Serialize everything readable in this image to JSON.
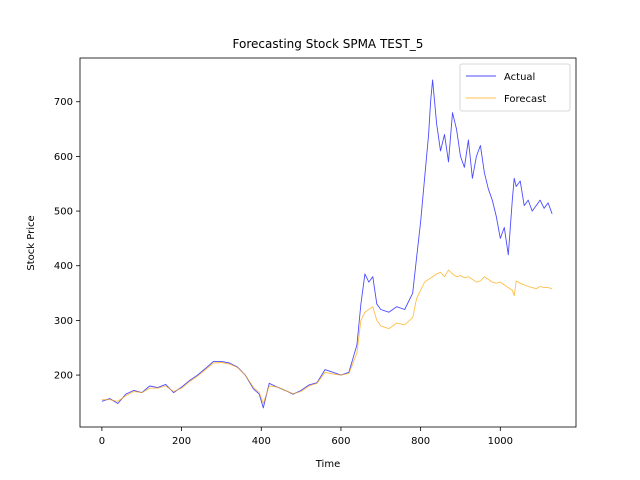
{
  "chart_data": {
    "type": "line",
    "title": "Forecasting Stock SPMA TEST_5",
    "xlabel": "Time",
    "ylabel": "Stock Price",
    "xlim": [
      -55,
      1190
    ],
    "ylim": [
      105,
      780
    ],
    "xticks": [
      0,
      200,
      400,
      600,
      800,
      1000
    ],
    "yticks": [
      200,
      300,
      400,
      500,
      600,
      700
    ],
    "grid": false,
    "legend": "top-right",
    "series": [
      {
        "name": "Actual",
        "color": "#0000ff",
        "x": [
          0,
          20,
          40,
          60,
          80,
          100,
          120,
          140,
          160,
          180,
          200,
          220,
          240,
          260,
          280,
          300,
          320,
          340,
          360,
          380,
          395,
          405,
          420,
          440,
          460,
          480,
          500,
          520,
          540,
          560,
          580,
          600,
          620,
          640,
          650,
          660,
          670,
          680,
          690,
          700,
          720,
          740,
          760,
          780,
          790,
          800,
          810,
          820,
          825,
          830,
          840,
          850,
          860,
          870,
          880,
          890,
          900,
          910,
          920,
          930,
          940,
          950,
          960,
          970,
          980,
          990,
          1000,
          1010,
          1020,
          1030,
          1035,
          1040,
          1050,
          1060,
          1070,
          1080,
          1090,
          1100,
          1110,
          1120,
          1130
        ],
        "values": [
          152,
          157,
          148,
          165,
          172,
          168,
          180,
          177,
          183,
          168,
          178,
          190,
          200,
          212,
          225,
          225,
          222,
          215,
          200,
          175,
          165,
          140,
          185,
          178,
          172,
          165,
          172,
          182,
          186,
          210,
          205,
          200,
          205,
          255,
          330,
          385,
          370,
          380,
          330,
          320,
          315,
          325,
          320,
          350,
          415,
          480,
          560,
          640,
          700,
          740,
          660,
          610,
          640,
          590,
          680,
          650,
          600,
          580,
          630,
          560,
          600,
          620,
          570,
          540,
          520,
          490,
          450,
          470,
          420,
          520,
          560,
          545,
          555,
          510,
          520,
          500,
          510,
          520,
          505,
          515,
          495
        ]
      },
      {
        "name": "Forecast",
        "color": "#ffa500",
        "x": [
          0,
          20,
          40,
          60,
          80,
          100,
          120,
          140,
          160,
          180,
          200,
          220,
          240,
          260,
          280,
          300,
          320,
          340,
          360,
          380,
          395,
          405,
          420,
          440,
          460,
          480,
          500,
          520,
          540,
          560,
          580,
          600,
          620,
          640,
          650,
          660,
          670,
          680,
          690,
          700,
          720,
          740,
          760,
          780,
          790,
          800,
          810,
          820,
          830,
          840,
          850,
          860,
          870,
          880,
          890,
          900,
          910,
          920,
          930,
          940,
          950,
          960,
          970,
          980,
          990,
          1000,
          1010,
          1020,
          1030,
          1035,
          1040,
          1050,
          1060,
          1070,
          1080,
          1090,
          1100,
          1110,
          1120,
          1130
        ],
        "values": [
          155,
          155,
          152,
          162,
          170,
          168,
          176,
          176,
          180,
          170,
          176,
          188,
          198,
          210,
          222,
          223,
          220,
          214,
          200,
          178,
          168,
          148,
          180,
          178,
          172,
          166,
          170,
          180,
          185,
          205,
          202,
          200,
          203,
          240,
          300,
          315,
          320,
          325,
          300,
          290,
          285,
          295,
          292,
          305,
          340,
          355,
          370,
          375,
          380,
          385,
          388,
          380,
          392,
          385,
          380,
          382,
          378,
          380,
          375,
          370,
          372,
          380,
          375,
          370,
          368,
          370,
          365,
          360,
          355,
          345,
          372,
          368,
          365,
          362,
          360,
          358,
          362,
          360,
          360,
          358
        ]
      }
    ]
  }
}
